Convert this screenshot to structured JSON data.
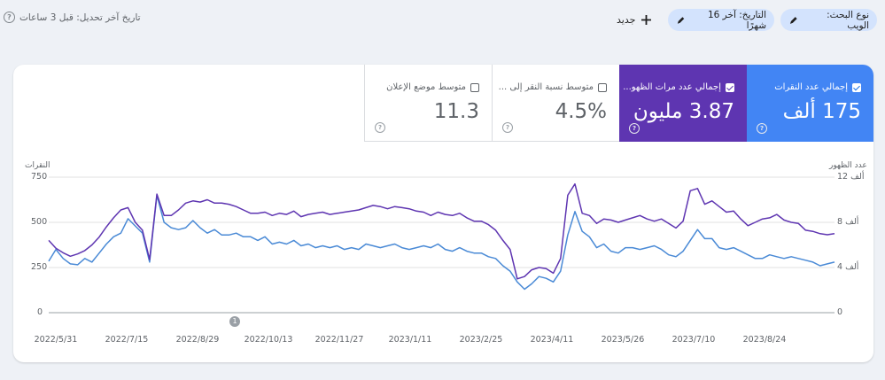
{
  "header": {
    "last_update": "تاريخ آخر تحديل: قبل 3 ساعات",
    "new_label": "جديد",
    "filters": [
      {
        "label": "نوع البحث: الويب"
      },
      {
        "label": "التاريخ: آخر 16 شهرًا"
      }
    ]
  },
  "metrics": [
    {
      "label": "إجمالي عدد النقرات",
      "value": "175 ألف",
      "checked": true,
      "color": "#4285f4"
    },
    {
      "label": "إجمالي عدد مرات الظهو...",
      "value": "3.87 مليون",
      "checked": true,
      "color": "#5e35b1"
    },
    {
      "label": "متوسط نسبة النقر إلى ...",
      "value": "4.5%",
      "checked": false
    },
    {
      "label": "متوسط موضع الإعلان",
      "value": "11.3",
      "checked": false
    }
  ],
  "chart_data": {
    "type": "line",
    "y_left_title": "النقرات",
    "y_right_title": "عدد الظهور",
    "y_left_ticks": [
      "750",
      "500",
      "250",
      "0"
    ],
    "y_right_ticks": [
      "12 ألف",
      "8 ألف",
      "4 ألف",
      "0"
    ],
    "y_left_range": [
      0,
      750
    ],
    "y_right_range": [
      0,
      12000
    ],
    "x_ticks": [
      "2022/5/31",
      "2022/7/15",
      "2022/8/29",
      "2022/10/13",
      "2022/11/27",
      "2023/1/11",
      "2023/2/25",
      "2023/4/11",
      "2023/5/26",
      "2023/7/10",
      "2023/8/24"
    ],
    "annotation_marker": "1",
    "grid": true,
    "series": [
      {
        "name": "النقرات",
        "axis": "left",
        "color": "#4a8ad6",
        "values": [
          285,
          350,
          300,
          270,
          265,
          300,
          280,
          330,
          380,
          420,
          440,
          520,
          480,
          440,
          280,
          650,
          500,
          470,
          460,
          470,
          510,
          470,
          440,
          460,
          430,
          430,
          440,
          420,
          420,
          400,
          420,
          380,
          390,
          380,
          400,
          370,
          380,
          360,
          370,
          360,
          370,
          350,
          360,
          350,
          380,
          370,
          360,
          370,
          380,
          360,
          350,
          360,
          370,
          360,
          380,
          350,
          340,
          360,
          340,
          330,
          330,
          310,
          300,
          260,
          230,
          170,
          130,
          160,
          200,
          190,
          170,
          230,
          430,
          560,
          450,
          420,
          360,
          380,
          340,
          330,
          360,
          360,
          350,
          360,
          370,
          350,
          320,
          310,
          340,
          400,
          460,
          410,
          410,
          360,
          350,
          360,
          340,
          320,
          300,
          300,
          320,
          310,
          300,
          310,
          300,
          290,
          280,
          260,
          270,
          280
        ]
      },
      {
        "name": "عدد الظهور",
        "axis": "right",
        "color": "#5e35b1",
        "values": [
          6400,
          5700,
          5300,
          5000,
          5200,
          5500,
          6000,
          6700,
          7600,
          8400,
          9100,
          9300,
          8000,
          7300,
          4700,
          10500,
          8600,
          8600,
          9100,
          9700,
          9900,
          9800,
          10000,
          9700,
          9700,
          9600,
          9400,
          9100,
          8800,
          8800,
          8900,
          8600,
          8800,
          8700,
          9000,
          8500,
          8700,
          8800,
          8900,
          8700,
          8800,
          8900,
          9000,
          9100,
          9300,
          9500,
          9400,
          9200,
          9400,
          9300,
          9200,
          9000,
          8900,
          8600,
          8900,
          8700,
          8600,
          8800,
          8400,
          8100,
          8100,
          7800,
          7300,
          6400,
          5600,
          3000,
          3200,
          3800,
          4000,
          3900,
          3500,
          4800,
          10400,
          11400,
          8800,
          8600,
          7900,
          8300,
          8200,
          8000,
          8200,
          8400,
          8600,
          8300,
          8100,
          8300,
          7900,
          7500,
          8100,
          10800,
          11000,
          9600,
          9900,
          9400,
          8900,
          9000,
          8300,
          7700,
          8000,
          8300,
          8400,
          8700,
          8200,
          8000,
          7900,
          7300,
          7200,
          7000,
          6900,
          7000
        ]
      }
    ]
  }
}
